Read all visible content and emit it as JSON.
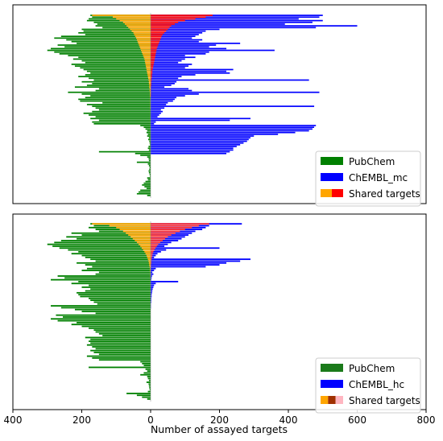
{
  "chart_data": [
    {
      "type": "bar",
      "orientation": "horizontal-diverging",
      "xlabel": "",
      "xlim": [
        -400,
        800
      ],
      "xticks": [],
      "legend": {
        "placement": "lower-right",
        "entries": [
          {
            "label": "PubChem",
            "colors": [
              "#008000"
            ]
          },
          {
            "label": "ChEMBL_mc",
            "colors": [
              "#0000ff"
            ]
          },
          {
            "label": "Shared targets",
            "colors": [
              "#ffa500",
              "#ff0000"
            ]
          }
        ]
      },
      "colors": {
        "pubchem": "#008000",
        "chembl": "#0000ff",
        "shared_left": "#ffa500",
        "shared_right": "#ff0000"
      },
      "series": [
        {
          "name": "PubChem",
          "values": [
            175,
            170,
            180,
            185,
            165,
            155,
            160,
            140,
            200,
            195,
            210,
            190,
            260,
            280,
            245,
            230,
            215,
            270,
            250,
            290,
            300,
            280,
            265,
            240,
            210,
            225,
            200,
            190,
            230,
            220,
            205,
            195,
            185,
            175,
            190,
            210,
            180,
            165,
            200,
            170,
            185,
            220,
            150,
            160,
            240,
            200,
            175,
            190,
            210,
            205,
            140,
            185,
            170,
            160,
            150,
            170,
            195,
            180,
            160,
            175,
            150,
            170,
            165,
            30,
            20,
            15,
            10,
            12,
            8,
            10,
            5,
            7,
            4,
            3,
            2,
            6,
            8,
            5,
            150,
            45,
            30,
            10,
            6,
            5,
            40,
            8,
            5,
            3,
            4,
            6,
            5,
            3,
            2,
            10,
            8,
            15,
            20,
            25,
            18,
            12,
            30,
            35,
            40,
            10
          ]
        },
        {
          "name": "ChEMBL_mc",
          "values": [
            500,
            490,
            430,
            500,
            470,
            390,
            600,
            480,
            200,
            160,
            150,
            140,
            130,
            120,
            150,
            140,
            260,
            190,
            170,
            220,
            360,
            170,
            160,
            100,
            130,
            100,
            90,
            80,
            120,
            110,
            100,
            240,
            220,
            230,
            130,
            90,
            80,
            460,
            75,
            70,
            60,
            40,
            110,
            120,
            490,
            140,
            100,
            75,
            70,
            65,
            50,
            45,
            475,
            40,
            30,
            35,
            30,
            25,
            20,
            290,
            230,
            15,
            10,
            480,
            475,
            470,
            460,
            420,
            370,
            300,
            290,
            285,
            280,
            270,
            260,
            250,
            240,
            240,
            230,
            220,
            0,
            0,
            0,
            0,
            0,
            0,
            0,
            0,
            0,
            0,
            0,
            0,
            0,
            0,
            0,
            0,
            0,
            0,
            0,
            0,
            0,
            0,
            0,
            0
          ]
        },
        {
          "name": "Shared targets (left)",
          "values": [
            170,
            110,
            100,
            90,
            80,
            75,
            70,
            65,
            60,
            55,
            50,
            48,
            45,
            42,
            40,
            38,
            36,
            34,
            32,
            30,
            28,
            26,
            24,
            22,
            20,
            18,
            17,
            16,
            15,
            14,
            13,
            12,
            11,
            10,
            9,
            8,
            7,
            6,
            5,
            5,
            4,
            4,
            3,
            3,
            2,
            2,
            2,
            1,
            1,
            1,
            1,
            1,
            1,
            1,
            0,
            0,
            0,
            0,
            0,
            0,
            0,
            0,
            0,
            0,
            0,
            0,
            0,
            0,
            0,
            0,
            0,
            0,
            0,
            0,
            0,
            0,
            0,
            0,
            0,
            0,
            0,
            0,
            0,
            0,
            0,
            0,
            0,
            0,
            0,
            0,
            0,
            0,
            0,
            0,
            0,
            0,
            0,
            0,
            0,
            0,
            0,
            0,
            0,
            0
          ]
        },
        {
          "name": "Shared targets (right)",
          "values": [
            180,
            160,
            130,
            100,
            80,
            70,
            60,
            55,
            50,
            45,
            40,
            35,
            32,
            30,
            28,
            26,
            24,
            22,
            20,
            18,
            17,
            16,
            15,
            14,
            13,
            12,
            11,
            10,
            9,
            8,
            7,
            6,
            5,
            5,
            4,
            4,
            3,
            3,
            2,
            2,
            2,
            1,
            1,
            1,
            1,
            1,
            1,
            0,
            0,
            0,
            0,
            0,
            0,
            0,
            0,
            0,
            0,
            0,
            0,
            0,
            0,
            0,
            0,
            0,
            0,
            0,
            0,
            0,
            0,
            0,
            0,
            0,
            0,
            0,
            0,
            0,
            0,
            0,
            0,
            0,
            0,
            0,
            0,
            0,
            0,
            0,
            0,
            0,
            0,
            0,
            0,
            0,
            0,
            0,
            0,
            0,
            0,
            0,
            0,
            0,
            0,
            0,
            0,
            0
          ]
        }
      ]
    },
    {
      "type": "bar",
      "orientation": "horizontal-diverging",
      "xlabel": "Number of assayed targets",
      "xlim": [
        -400,
        800
      ],
      "xticks": [
        {
          "value": -400,
          "label": "400"
        },
        {
          "value": -200,
          "label": "200"
        },
        {
          "value": 0,
          "label": "0"
        },
        {
          "value": 200,
          "label": "200"
        },
        {
          "value": 400,
          "label": "400"
        },
        {
          "value": 600,
          "label": "600"
        },
        {
          "value": 800,
          "label": "800"
        }
      ],
      "legend": {
        "placement": "lower-right",
        "entries": [
          {
            "label": "PubChem",
            "colors": [
              "#1a7a1a"
            ]
          },
          {
            "label": "ChEMBL_hc",
            "colors": [
              "#0000ff"
            ]
          },
          {
            "label": "Shared targets",
            "colors": [
              "#ffa500",
              "#a03000",
              "#ffb6c1"
            ]
          }
        ]
      },
      "colors": {
        "pubchem": "#008000",
        "chembl": "#0000ff",
        "shared_left": "#ffa500",
        "shared_right": "#ff3030"
      },
      "series": [
        {
          "name": "PubChem",
          "values": [
            175,
            165,
            180,
            160,
            150,
            230,
            200,
            245,
            215,
            260,
            280,
            300,
            285,
            265,
            240,
            210,
            230,
            200,
            190,
            175,
            160,
            215,
            190,
            170,
            185,
            200,
            150,
            160,
            270,
            250,
            290,
            210,
            230,
            180,
            200,
            175,
            190,
            215,
            210,
            205,
            180,
            175,
            165,
            155,
            290,
            260,
            220,
            200,
            160,
            275,
            255,
            290,
            270,
            215,
            230,
            200,
            180,
            165,
            160,
            150,
            140,
            190,
            175,
            180,
            175,
            185,
            170,
            160,
            175,
            165,
            150,
            185,
            170,
            150,
            30,
            25,
            20,
            180,
            15,
            10,
            20,
            30,
            10,
            8,
            5,
            12,
            6,
            5,
            4,
            3,
            8,
            70,
            40,
            25,
            10
          ]
        },
        {
          "name": "ChEMBL_hc",
          "values": [
            265,
            170,
            160,
            150,
            130,
            120,
            110,
            100,
            90,
            80,
            60,
            50,
            40,
            200,
            45,
            30,
            20,
            15,
            10,
            290,
            260,
            220,
            200,
            160,
            15,
            10,
            5,
            8,
            4,
            3,
            2,
            80,
            15,
            10,
            8,
            6,
            5,
            4,
            3,
            3,
            2,
            2,
            2,
            1,
            1,
            1,
            0,
            0,
            0,
            0,
            0,
            0,
            0,
            0,
            0,
            0,
            0,
            0,
            0,
            0,
            0,
            0,
            0,
            0,
            0,
            0,
            0,
            0,
            0,
            0,
            0,
            0,
            0,
            0,
            0,
            0,
            0,
            0,
            0,
            0,
            0,
            0,
            0,
            0,
            0,
            0,
            0,
            0,
            0,
            0,
            0,
            0,
            0,
            0,
            0
          ]
        },
        {
          "name": "Shared targets (left)",
          "values": [
            170,
            120,
            100,
            90,
            80,
            72,
            65,
            58,
            52,
            46,
            40,
            35,
            30,
            26,
            22,
            18,
            15,
            12,
            10,
            8,
            6,
            5,
            4,
            3,
            2,
            2,
            1,
            1,
            1,
            0,
            0,
            0,
            0,
            0,
            0,
            0,
            0,
            0,
            0,
            0,
            0,
            0,
            0,
            0,
            0,
            0,
            0,
            0,
            0,
            0,
            0,
            0,
            0,
            0,
            0,
            0,
            0,
            0,
            0,
            0,
            0,
            0,
            0,
            0,
            0,
            0,
            0,
            0,
            0,
            0,
            0,
            0,
            0,
            0,
            0,
            0,
            0,
            0,
            0,
            0,
            0,
            0,
            0,
            0,
            0,
            0,
            0,
            0,
            0,
            0,
            0,
            0,
            0,
            0,
            0
          ]
        },
        {
          "name": "Shared targets (right)",
          "values": [
            170,
            140,
            120,
            100,
            85,
            72,
            60,
            50,
            42,
            35,
            28,
            22,
            18,
            14,
            11,
            8,
            6,
            5,
            4,
            3,
            2,
            2,
            1,
            1,
            0,
            0,
            0,
            0,
            0,
            0,
            0,
            0,
            0,
            0,
            0,
            0,
            0,
            0,
            0,
            0,
            0,
            0,
            0,
            0,
            0,
            0,
            0,
            0,
            0,
            0,
            0,
            0,
            0,
            0,
            0,
            0,
            0,
            0,
            0,
            0,
            0,
            0,
            0,
            0,
            0,
            0,
            0,
            0,
            0,
            0,
            0,
            0,
            0,
            0,
            0,
            0,
            0,
            0,
            0,
            0,
            0,
            0,
            0,
            0,
            0,
            0,
            0,
            0,
            0,
            0,
            0,
            0,
            0,
            0,
            0
          ]
        }
      ]
    }
  ]
}
